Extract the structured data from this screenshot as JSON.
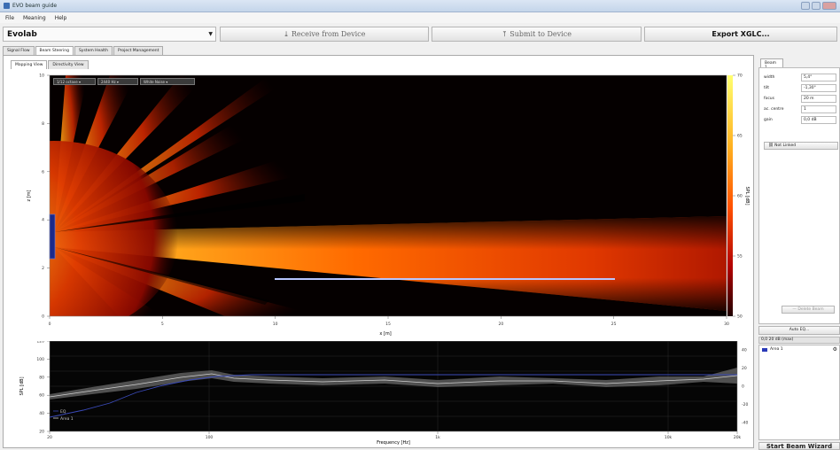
{
  "window": {
    "title": "EVO beam guide"
  },
  "menu": [
    "File",
    "Meaning",
    "Help"
  ],
  "toolbar": {
    "device": "Evolab",
    "receive": "Receive from Device",
    "submit": "Submit to Device",
    "export": "Export XGLC..."
  },
  "main_tabs": [
    "Signal Flow",
    "Beam Steering",
    "System Health",
    "Project Management"
  ],
  "sub_tabs": [
    "Mapping View",
    "Directivity View"
  ],
  "map_controls": [
    "1/12 octave",
    "2440 Hz",
    "White Noise"
  ],
  "map_plot": {
    "xlabel": "x [m]",
    "ylabel": "z [m]",
    "x_ticks": [
      "0",
      "5",
      "10",
      "15",
      "20",
      "25",
      "30"
    ],
    "y_ticks": [
      "10",
      "8",
      "6",
      "4",
      "2",
      "0"
    ],
    "colorbar_label": "SPL [dB]",
    "colorbar_ticks": [
      "70",
      "65",
      "60",
      "55",
      "50"
    ]
  },
  "freq_plot": {
    "xlabel": "Frequency [Hz]",
    "ylabel": "SPL [dB]",
    "y_ticks": [
      "120",
      "100",
      "80",
      "60",
      "40",
      "20"
    ],
    "x_ticks": [
      "20",
      "100",
      "1k",
      "10k",
      "20k"
    ],
    "y2_ticks": [
      "40",
      "20",
      "0",
      "-20",
      "-40"
    ],
    "legend": [
      "EQ",
      "Area 1"
    ]
  },
  "side": {
    "tab": "Beam 1",
    "props": [
      {
        "k": "width",
        "v": "5,4°"
      },
      {
        "k": "tilt",
        "v": "-1,30°"
      },
      {
        "k": "focus",
        "v": "20 m"
      },
      {
        "k": "ac. centre",
        "v": "1"
      },
      {
        "k": "gain",
        "v": "0,0 dB"
      }
    ],
    "not_linked": "Not Linked",
    "delete_beam": "Delete Beam",
    "auto_eq": "Auto EQ...",
    "eq_header": "0,0 20 dB (max)",
    "area_item": "Area 1",
    "wizard": "Start Beam Wizard"
  },
  "colors": {
    "hot_core": "#fff7a0",
    "hot_mid": "#ff6a00",
    "hot_dark": "#7a0000",
    "accent": "#3b6db3"
  }
}
